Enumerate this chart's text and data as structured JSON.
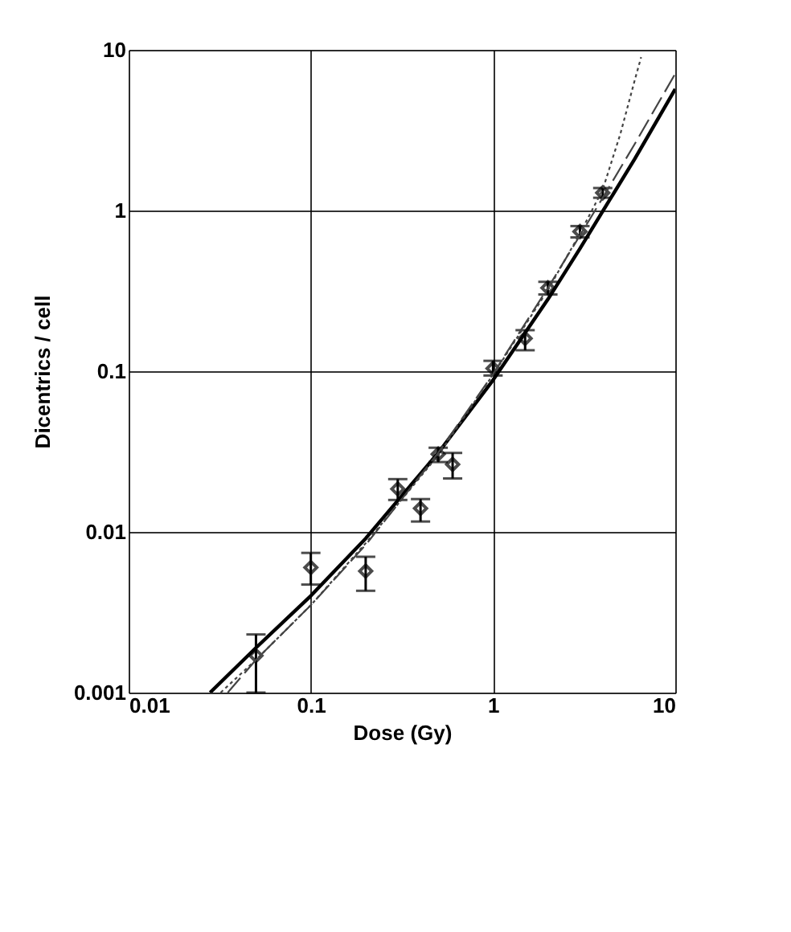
{
  "chart_data": {
    "type": "scatter",
    "xlabel": "Dose (Gy)",
    "ylabel": "Dicentrics / cell",
    "log": "xy",
    "grid": true,
    "xlim": [
      0.01,
      10
    ],
    "ylim": [
      0.001,
      10
    ],
    "xticks": [
      {
        "value": 0.01,
        "label": "0.01"
      },
      {
        "value": 0.1,
        "label": "0.1"
      },
      {
        "value": 1,
        "label": "1"
      },
      {
        "value": 10,
        "label": "10"
      }
    ],
    "yticks": [
      {
        "value": 0.001,
        "label": "0.001"
      },
      {
        "value": 0.01,
        "label": "0.01"
      },
      {
        "value": 0.1,
        "label": "0.1"
      },
      {
        "value": 1,
        "label": "1"
      },
      {
        "value": 10,
        "label": "10"
      }
    ],
    "series": [
      {
        "color": "#000000",
        "marker": "diamond",
        "x": [
          0.05,
          0.1,
          0.2,
          0.3,
          0.4,
          0.5,
          0.6,
          1,
          1.5,
          2,
          3,
          4
        ],
        "values": [
          0.0017,
          0.006,
          0.0057,
          0.0185,
          0.014,
          0.0305,
          0.0263,
          0.104,
          0.16,
          0.33,
          0.74,
          1.29
        ],
        "errors": [
          [
            0.001,
            0.0023
          ],
          [
            0.0047,
            0.0074
          ],
          [
            0.0043,
            0.007
          ],
          [
            0.0158,
            0.0213
          ],
          [
            0.0116,
            0.016
          ],
          [
            0.0272,
            0.0334
          ],
          [
            0.0215,
            0.031
          ],
          [
            0.094,
            0.116
          ],
          [
            0.135,
            0.18
          ],
          [
            0.3,
            0.36
          ],
          [
            0.68,
            0.8
          ],
          [
            1.2,
            1.38
          ]
        ]
      },
      {
        "type": "line",
        "color": "#000000",
        "line_style": "solid",
        "x": [
          0.028,
          0.05,
          0.1,
          0.2,
          0.5,
          1,
          2,
          3,
          4,
          6,
          10
        ],
        "values": [
          0.001,
          0.0019,
          0.004,
          0.0091,
          0.031,
          0.088,
          0.28,
          0.58,
          0.99,
          2.1,
          5.7
        ]
      },
      {
        "type": "line",
        "color": "#444444",
        "line_style": "dashed",
        "x": [
          0.035,
          0.05,
          0.1,
          0.2,
          0.5,
          1,
          2,
          3,
          4,
          6,
          10
        ],
        "values": [
          0.001,
          0.0016,
          0.0035,
          0.0083,
          0.031,
          0.096,
          0.33,
          0.7,
          1.2,
          2.6,
          7.1
        ]
      },
      {
        "type": "line",
        "color": "#444444",
        "line_style": "dotted",
        "x": [
          0.032,
          0.05,
          0.1,
          0.2,
          0.5,
          1,
          2,
          3,
          4,
          5,
          6,
          6.5
        ],
        "values": [
          0.001,
          0.0016,
          0.0035,
          0.0085,
          0.03,
          0.095,
          0.32,
          0.72,
          1.35,
          3.0,
          6.5,
          9.0
        ]
      }
    ]
  }
}
